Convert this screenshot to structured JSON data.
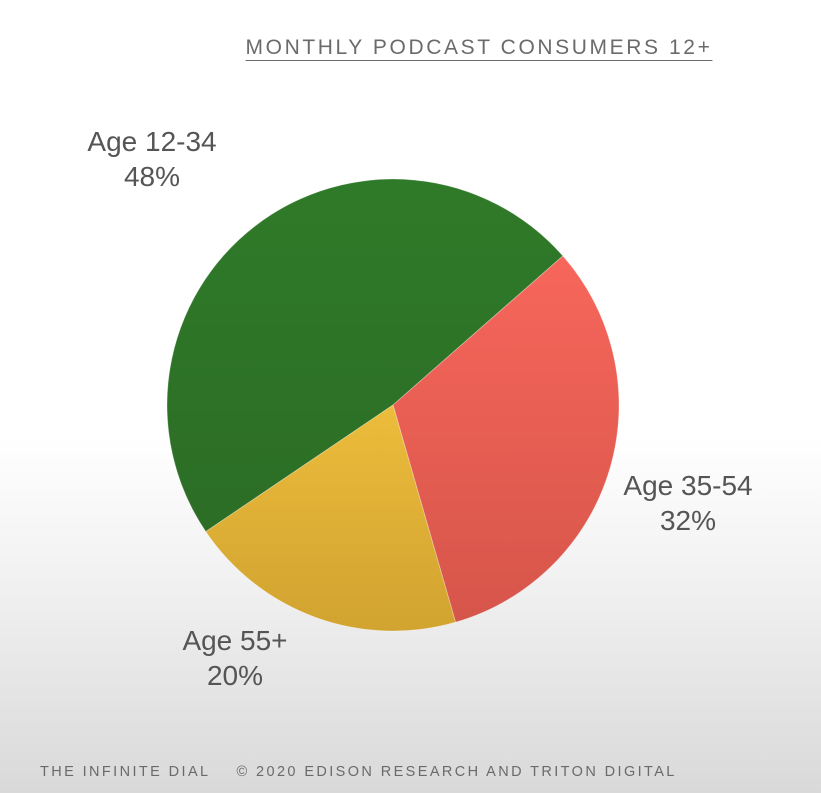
{
  "chart_data": {
    "type": "pie",
    "title": "MONTHLY PODCAST CONSUMERS 12+",
    "slices": [
      {
        "label": "Age 12-34",
        "value": 48,
        "value_label": "48%",
        "color": "#2e7428"
      },
      {
        "label": "Age 35-54",
        "value": 32,
        "value_label": "32%",
        "color": "#ef5c52"
      },
      {
        "label": "Age 55+",
        "value": 20,
        "value_label": "20%",
        "color": "#e8b83a"
      }
    ]
  },
  "footer": {
    "left": "THE INFINITE DIAL",
    "right": "© 2020 EDISON RESEARCH AND TRITON DIGITAL"
  }
}
